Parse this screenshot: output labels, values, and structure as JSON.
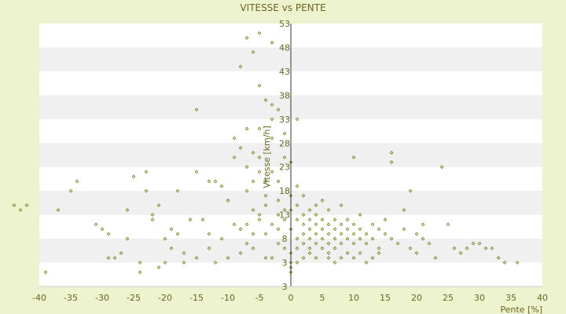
{
  "chart_data": {
    "type": "scatter",
    "title": "VITESSE vs PENTE",
    "xlabel": "Pente [%]",
    "ylabel": "Vitesse [km/h]",
    "xlim": [
      -40,
      40
    ],
    "ylim": [
      -2,
      53
    ],
    "x_ticks": [
      "-40",
      "-35",
      "-30",
      "-25",
      "-20",
      "-15",
      "-10",
      "-5",
      "0",
      "5",
      "10",
      "15",
      "20",
      "25",
      "30",
      "35",
      "40"
    ],
    "y_ticks": [
      "3",
      "3",
      "8",
      "13",
      "18",
      "23",
      "28",
      "33",
      "38",
      "43",
      "48",
      "53"
    ],
    "grid": "horizontal bands",
    "colors": {
      "background": "#eef3cf",
      "band_light": "#ffffff",
      "band_dark": "#f0f0f0",
      "point": "#6b7a10",
      "axis": "#333333",
      "text": "#6b6520"
    },
    "series": [
      {
        "points": [
          [
            -44,
            15
          ],
          [
            -43,
            14
          ],
          [
            -42,
            15
          ],
          [
            -39,
            1
          ],
          [
            -37,
            14
          ],
          [
            -35,
            18
          ],
          [
            -34,
            20
          ],
          [
            -31,
            11
          ],
          [
            -30,
            10
          ],
          [
            -29,
            9
          ],
          [
            -29,
            4
          ],
          [
            -28,
            4
          ],
          [
            -27,
            5
          ],
          [
            -26,
            14
          ],
          [
            -26,
            8
          ],
          [
            -25,
            21
          ],
          [
            -24,
            3
          ],
          [
            -24,
            1
          ],
          [
            -23,
            22
          ],
          [
            -23,
            18
          ],
          [
            -22,
            13
          ],
          [
            -22,
            12
          ],
          [
            -21,
            2
          ],
          [
            -21,
            15
          ],
          [
            -20,
            3
          ],
          [
            -20,
            8
          ],
          [
            -19,
            10
          ],
          [
            -18,
            9
          ],
          [
            -18,
            18
          ],
          [
            -17,
            5
          ],
          [
            -16,
            12
          ],
          [
            -15,
            22
          ],
          [
            -15,
            35
          ],
          [
            -14,
            12
          ],
          [
            -13,
            20
          ],
          [
            -13,
            9
          ],
          [
            -12,
            20
          ],
          [
            -11,
            19
          ],
          [
            -10,
            16
          ],
          [
            -9,
            11
          ],
          [
            -9,
            25
          ],
          [
            -8,
            27
          ],
          [
            -8,
            5
          ],
          [
            -7,
            23
          ],
          [
            -7,
            18
          ],
          [
            -7,
            11
          ],
          [
            -6,
            6
          ],
          [
            -6,
            14
          ],
          [
            -6,
            20
          ],
          [
            -5,
            25
          ],
          [
            -5,
            13
          ],
          [
            -5,
            31
          ],
          [
            -4,
            17
          ],
          [
            -4,
            9
          ],
          [
            -4,
            4
          ],
          [
            -3,
            22
          ],
          [
            -3,
            29
          ],
          [
            -3,
            36
          ],
          [
            -2,
            16
          ],
          [
            -2,
            10
          ],
          [
            -2,
            20
          ],
          [
            -1,
            25
          ],
          [
            -1,
            14
          ],
          [
            -1,
            6
          ],
          [
            -1,
            30
          ],
          [
            0,
            14
          ],
          [
            0,
            10
          ],
          [
            0,
            17
          ],
          [
            0,
            5
          ],
          [
            0,
            24
          ],
          [
            1,
            12
          ],
          [
            1,
            8
          ],
          [
            1,
            15
          ],
          [
            1,
            19
          ],
          [
            1,
            6
          ],
          [
            2,
            11
          ],
          [
            2,
            13
          ],
          [
            2,
            9
          ],
          [
            2,
            17
          ],
          [
            2,
            7
          ],
          [
            3,
            10
          ],
          [
            3,
            14
          ],
          [
            3,
            8
          ],
          [
            3,
            12
          ],
          [
            3,
            6
          ],
          [
            4,
            11
          ],
          [
            4,
            9
          ],
          [
            4,
            15
          ],
          [
            4,
            7
          ],
          [
            4,
            13
          ],
          [
            5,
            10
          ],
          [
            5,
            8
          ],
          [
            5,
            12
          ],
          [
            5,
            6
          ],
          [
            5,
            16
          ],
          [
            6,
            9
          ],
          [
            6,
            11
          ],
          [
            6,
            7
          ],
          [
            6,
            14
          ],
          [
            6,
            5
          ],
          [
            7,
            10
          ],
          [
            7,
            8
          ],
          [
            7,
            12
          ],
          [
            7,
            6
          ],
          [
            8,
            9
          ],
          [
            8,
            11
          ],
          [
            8,
            7
          ],
          [
            8,
            15
          ],
          [
            9,
            10
          ],
          [
            9,
            8
          ],
          [
            9,
            12
          ],
          [
            10,
            9
          ],
          [
            10,
            7
          ],
          [
            10,
            11
          ],
          [
            10,
            25
          ],
          [
            11,
            8
          ],
          [
            11,
            10
          ],
          [
            11,
            13
          ],
          [
            12,
            9
          ],
          [
            12,
            7
          ],
          [
            13,
            8
          ],
          [
            13,
            11
          ],
          [
            14,
            10
          ],
          [
            14,
            6
          ],
          [
            15,
            9
          ],
          [
            15,
            12
          ],
          [
            16,
            8
          ],
          [
            16,
            24
          ],
          [
            16,
            26
          ],
          [
            17,
            7
          ],
          [
            18,
            10
          ],
          [
            18,
            14
          ],
          [
            19,
            18
          ],
          [
            19,
            6
          ],
          [
            20,
            9
          ],
          [
            20,
            5
          ],
          [
            21,
            11
          ],
          [
            21,
            8
          ],
          [
            22,
            7
          ],
          [
            23,
            4
          ],
          [
            24,
            23
          ],
          [
            25,
            11
          ],
          [
            26,
            6
          ],
          [
            27,
            5
          ],
          [
            28,
            6
          ],
          [
            29,
            7
          ],
          [
            30,
            7
          ],
          [
            31,
            6
          ],
          [
            32,
            6
          ],
          [
            33,
            4
          ],
          [
            34,
            3
          ],
          [
            36,
            3
          ],
          [
            -13,
            6
          ],
          [
            -11,
            8
          ],
          [
            -10,
            4
          ],
          [
            -8,
            10
          ],
          [
            -7,
            7
          ],
          [
            -6,
            9
          ],
          [
            -5,
            12
          ],
          [
            -4,
            15
          ],
          [
            -3,
            11
          ],
          [
            -2,
            13
          ],
          [
            -1,
            12
          ],
          [
            -2,
            7
          ],
          [
            -3,
            4
          ],
          [
            -4,
            20
          ],
          [
            -5,
            22
          ],
          [
            -6,
            26
          ],
          [
            -9,
            29
          ],
          [
            -7,
            31
          ],
          [
            0,
            3
          ],
          [
            0,
            1
          ],
          [
            0,
            2
          ],
          [
            1,
            3
          ],
          [
            2,
            4
          ],
          [
            3,
            5
          ],
          [
            4,
            4
          ],
          [
            6,
            4
          ],
          [
            7,
            3
          ],
          [
            8,
            4
          ],
          [
            9,
            5
          ],
          [
            10,
            4
          ],
          [
            11,
            5
          ],
          [
            12,
            3
          ],
          [
            13,
            4
          ],
          [
            14,
            5
          ],
          [
            -12,
            3
          ],
          [
            -15,
            4
          ],
          [
            -17,
            3
          ],
          [
            -19,
            6
          ],
          [
            -8,
            44
          ],
          [
            -6,
            47
          ],
          [
            -5,
            51
          ],
          [
            -3,
            49
          ],
          [
            -2,
            35
          ],
          [
            1,
            33
          ],
          [
            -7,
            50
          ],
          [
            -5,
            40
          ],
          [
            -4,
            37
          ],
          [
            -3,
            33
          ]
        ]
      }
    ]
  }
}
